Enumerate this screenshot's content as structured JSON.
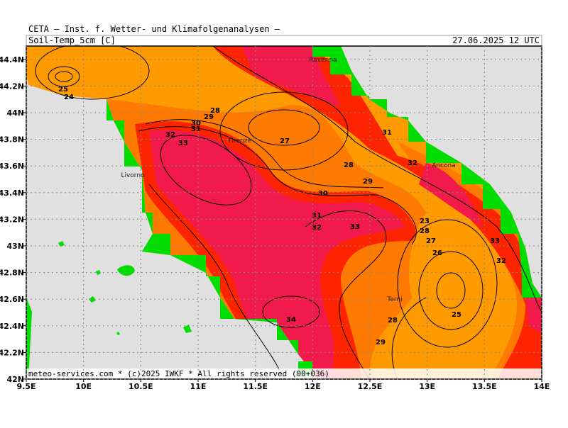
{
  "header": {
    "line1": "CETA — Inst. f. Wetter- und Klimafolgenanalysen —",
    "variable": "Soil-Temp_5cm [C]",
    "valid": "27.06.2025 12 UTC"
  },
  "footer": "meteo-services.com * (c)2025 IWKF * All rights reserved (00+036)",
  "map": {
    "xlim": [
      9.5,
      14
    ],
    "ylim": [
      42,
      44.5
    ],
    "xticks": [
      {
        "value": 9.5,
        "label": "9.5E"
      },
      {
        "value": 10,
        "label": "10E"
      },
      {
        "value": 10.5,
        "label": "10.5E"
      },
      {
        "value": 11,
        "label": "11E"
      },
      {
        "value": 11.5,
        "label": "11.5E"
      },
      {
        "value": 12,
        "label": "12E"
      },
      {
        "value": 12.5,
        "label": "12.5E"
      },
      {
        "value": 13,
        "label": "13E"
      },
      {
        "value": 13.5,
        "label": "13.5E"
      },
      {
        "value": 14,
        "label": "14E"
      }
    ],
    "yticks": [
      {
        "value": 42,
        "label": "42N"
      },
      {
        "value": 42.2,
        "label": "42.2N"
      },
      {
        "value": 42.4,
        "label": "42.4N"
      },
      {
        "value": 42.6,
        "label": "42.6N"
      },
      {
        "value": 42.8,
        "label": "42.8N"
      },
      {
        "value": 43,
        "label": "43N"
      },
      {
        "value": 43.2,
        "label": "43.2N"
      },
      {
        "value": 43.4,
        "label": "43.4N"
      },
      {
        "value": 43.6,
        "label": "43.6N"
      },
      {
        "value": 43.8,
        "label": "43.8N"
      },
      {
        "value": 44,
        "label": "44N"
      },
      {
        "value": 44.2,
        "label": "44.2N"
      },
      {
        "value": 44.4,
        "label": "44.4N"
      }
    ],
    "places": [
      "Ravenna",
      "Firenze",
      "Livorno",
      "Ancona",
      "Terni"
    ],
    "contour_labels": [
      25,
      24,
      28,
      29,
      30,
      31,
      32,
      33,
      27,
      31,
      28,
      29,
      30,
      32,
      31,
      32,
      33,
      23,
      28,
      27,
      26,
      33,
      32,
      25,
      34,
      28,
      29
    ]
  }
}
